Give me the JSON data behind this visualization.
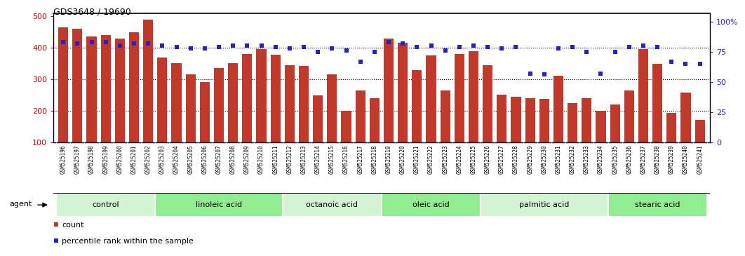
{
  "title": "GDS3648 / 19690",
  "samples": [
    "GSM525196",
    "GSM525197",
    "GSM525198",
    "GSM525199",
    "GSM525200",
    "GSM525201",
    "GSM525202",
    "GSM525203",
    "GSM525204",
    "GSM525205",
    "GSM525206",
    "GSM525207",
    "GSM525208",
    "GSM525209",
    "GSM525210",
    "GSM525211",
    "GSM525212",
    "GSM525213",
    "GSM525214",
    "GSM525215",
    "GSM525216",
    "GSM525217",
    "GSM525218",
    "GSM525219",
    "GSM525220",
    "GSM525221",
    "GSM525222",
    "GSM525223",
    "GSM525224",
    "GSM525225",
    "GSM525226",
    "GSM525227",
    "GSM525228",
    "GSM525229",
    "GSM525230",
    "GSM525231",
    "GSM525232",
    "GSM525233",
    "GSM525234",
    "GSM525235",
    "GSM525236",
    "GSM525237",
    "GSM525238",
    "GSM525239",
    "GSM525240",
    "GSM525241"
  ],
  "counts": [
    465,
    460,
    435,
    440,
    430,
    450,
    490,
    370,
    352,
    316,
    290,
    335,
    352,
    380,
    395,
    378,
    345,
    342,
    248,
    315,
    200,
    265,
    240,
    430,
    415,
    330,
    375,
    265,
    380,
    390,
    345,
    250,
    245,
    240,
    237,
    310,
    225,
    240,
    200,
    220,
    265,
    395,
    350,
    193,
    258,
    170
  ],
  "percentiles": [
    83,
    82,
    83,
    83,
    80,
    82,
    82,
    80,
    79,
    78,
    78,
    79,
    80,
    80,
    80,
    79,
    78,
    79,
    75,
    78,
    76,
    67,
    75,
    83,
    82,
    79,
    80,
    76,
    79,
    80,
    79,
    78,
    79,
    57,
    56,
    78,
    79,
    75,
    57,
    75,
    79,
    80,
    79,
    67,
    65,
    65
  ],
  "groups": [
    {
      "label": "control",
      "start": 0,
      "end": 6
    },
    {
      "label": "linoleic acid",
      "start": 7,
      "end": 15
    },
    {
      "label": "octanoic acid",
      "start": 16,
      "end": 22
    },
    {
      "label": "oleic acid",
      "start": 23,
      "end": 29
    },
    {
      "label": "palmitic acid",
      "start": 30,
      "end": 38
    },
    {
      "label": "stearic acid",
      "start": 39,
      "end": 45
    }
  ],
  "bar_color": "#c0392b",
  "dot_color": "#2222cc",
  "group_color_light": "#d4f5d4",
  "group_color_dark": "#90ee90",
  "tick_bg_color": "#c8c8c8",
  "left_yticks": [
    100,
    200,
    300,
    400,
    500
  ],
  "right_ytick_vals": [
    0,
    25,
    50,
    75,
    100
  ],
  "right_ytick_labels": [
    "0",
    "25",
    "50",
    "75",
    "100%"
  ],
  "ylim_left": [
    100,
    510
  ],
  "ylim_right": [
    0,
    107
  ],
  "ylabel_left_color": "#cc0000",
  "ylabel_right_color": "#2222cc"
}
